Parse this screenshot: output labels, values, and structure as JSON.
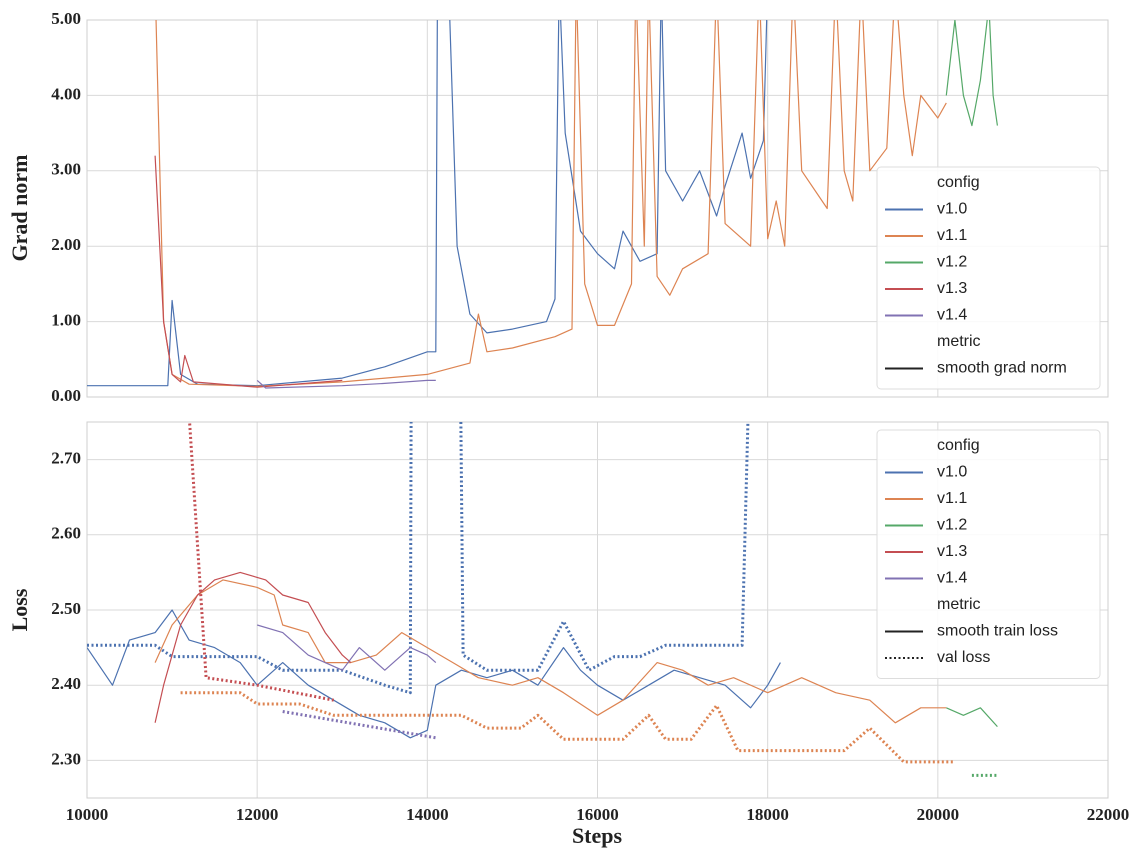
{
  "chart_data": [
    {
      "type": "line",
      "ylabel": "Grad norm",
      "ylim": [
        0,
        5
      ],
      "yticks": [
        {
          "value": 0,
          "label": "0.00"
        },
        {
          "value": 1,
          "label": "1.00"
        },
        {
          "value": 2,
          "label": "2.00"
        },
        {
          "value": 3,
          "label": "3.00"
        },
        {
          "value": 4,
          "label": "4.00"
        },
        {
          "value": 5,
          "label": "5.00"
        }
      ],
      "grid": true,
      "legend": {
        "title": "config",
        "metric_title": "metric",
        "corner": "lower right"
      },
      "configs": [
        {
          "name": "v1.0",
          "color": "#4c72b0"
        },
        {
          "name": "v1.1",
          "color": "#dd8452"
        },
        {
          "name": "v1.2",
          "color": "#55a868"
        },
        {
          "name": "v1.3",
          "color": "#c44e52"
        },
        {
          "name": "v1.4",
          "color": "#8172b3"
        }
      ],
      "metrics": [
        {
          "name": "smooth grad norm",
          "dash": "solid"
        }
      ],
      "series": [
        {
          "config": 0,
          "metric": 0,
          "x": [
            10000,
            10950,
            11000,
            11100,
            11300,
            12000,
            12500,
            13000,
            13500,
            14000,
            14100,
            14120,
            14250,
            14350,
            14500,
            14700,
            15000,
            15400,
            15500,
            15550,
            15620,
            15800,
            16000,
            16200,
            16300,
            16500,
            16700,
            16750,
            16800,
            17000,
            17200,
            17400,
            17500,
            17700,
            17800,
            17950,
            18000
          ],
          "values": [
            0.15,
            0.15,
            1.28,
            0.3,
            0.17,
            0.15,
            0.2,
            0.25,
            0.4,
            0.6,
            0.6,
            5.5,
            5.5,
            2.0,
            1.1,
            0.85,
            0.9,
            1.0,
            1.3,
            5.5,
            3.5,
            2.2,
            1.9,
            1.7,
            2.2,
            1.8,
            1.9,
            5.5,
            3.0,
            2.6,
            3.0,
            2.4,
            2.8,
            3.5,
            2.9,
            3.4,
            5.5
          ]
        },
        {
          "config": 1,
          "metric": 0,
          "x": [
            10800,
            10900,
            11000,
            11200,
            12000,
            13000,
            14000,
            14500,
            14600,
            14700,
            15000,
            15500,
            15700,
            15750,
            15850,
            16000,
            16200,
            16400,
            16450,
            16550,
            16600,
            16700,
            16850,
            17000,
            17300,
            17400,
            17500,
            17800,
            17900,
            18000,
            18100,
            18200,
            18300,
            18400,
            18700,
            18800,
            18900,
            19000,
            19100,
            19200,
            19400,
            19500,
            19600,
            19700,
            19800,
            20000,
            20100
          ],
          "values": [
            5.5,
            1.0,
            0.3,
            0.17,
            0.14,
            0.2,
            0.3,
            0.45,
            1.1,
            0.6,
            0.65,
            0.8,
            0.9,
            5.5,
            1.5,
            0.95,
            0.95,
            1.5,
            5.5,
            2.0,
            5.5,
            1.6,
            1.35,
            1.7,
            1.9,
            5.5,
            2.3,
            2.0,
            5.5,
            2.1,
            2.6,
            2.0,
            5.5,
            3.0,
            2.5,
            5.5,
            3.0,
            2.6,
            5.5,
            3.0,
            3.3,
            5.5,
            4.0,
            3.2,
            4.0,
            3.7,
            3.9
          ]
        },
        {
          "config": 2,
          "metric": 0,
          "x": [
            20100,
            20200,
            20300,
            20400,
            20500,
            20600,
            20650,
            20700
          ],
          "values": [
            4.0,
            5.0,
            4.0,
            3.6,
            4.2,
            5.2,
            4.0,
            3.6
          ]
        },
        {
          "config": 3,
          "metric": 0,
          "x": [
            10800,
            10900,
            11000,
            11100,
            11150,
            11250,
            12000,
            13000
          ],
          "values": [
            3.2,
            1.0,
            0.3,
            0.2,
            0.55,
            0.2,
            0.13,
            0.22
          ]
        },
        {
          "config": 4,
          "metric": 0,
          "x": [
            12000,
            12100,
            13000,
            13500,
            14000,
            14100
          ],
          "values": [
            0.22,
            0.12,
            0.15,
            0.18,
            0.22,
            0.22
          ]
        }
      ]
    },
    {
      "type": "line",
      "ylabel": "Loss",
      "xlabel": "Steps",
      "xlim": [
        10000,
        22000
      ],
      "xticks": [
        10000,
        12000,
        14000,
        16000,
        18000,
        20000,
        22000
      ],
      "ylim": [
        2.25,
        2.75
      ],
      "yticks": [
        {
          "value": 2.3,
          "label": "2.30"
        },
        {
          "value": 2.4,
          "label": "2.40"
        },
        {
          "value": 2.5,
          "label": "2.50"
        },
        {
          "value": 2.6,
          "label": "2.60"
        },
        {
          "value": 2.7,
          "label": "2.70"
        }
      ],
      "grid": true,
      "legend": {
        "title": "config",
        "metric_title": "metric",
        "corner": "upper right"
      },
      "configs": [
        {
          "name": "v1.0",
          "color": "#4c72b0"
        },
        {
          "name": "v1.1",
          "color": "#dd8452"
        },
        {
          "name": "v1.2",
          "color": "#55a868"
        },
        {
          "name": "v1.3",
          "color": "#c44e52"
        },
        {
          "name": "v1.4",
          "color": "#8172b3"
        }
      ],
      "metrics": [
        {
          "name": "smooth train loss",
          "dash": "solid"
        },
        {
          "name": "val loss",
          "dash": "dotted"
        }
      ],
      "series": [
        {
          "config": 0,
          "metric": 0,
          "x": [
            10000,
            10300,
            10500,
            10800,
            11000,
            11200,
            11500,
            11800,
            12000,
            12300,
            12600,
            12900,
            13200,
            13500,
            13800,
            14000,
            14100,
            14400,
            14700,
            15000,
            15300,
            15600,
            15800,
            16000,
            16300,
            16600,
            16900,
            17200,
            17500,
            17800,
            18000,
            18150
          ],
          "values": [
            2.45,
            2.4,
            2.46,
            2.47,
            2.5,
            2.46,
            2.45,
            2.43,
            2.4,
            2.43,
            2.4,
            2.38,
            2.36,
            2.35,
            2.33,
            2.34,
            2.4,
            2.42,
            2.41,
            2.42,
            2.4,
            2.45,
            2.42,
            2.4,
            2.38,
            2.4,
            2.42,
            2.41,
            2.4,
            2.37,
            2.4,
            2.43
          ]
        },
        {
          "config": 0,
          "metric": 1,
          "x": [
            10000,
            10800,
            11000,
            12000,
            12300,
            13000,
            13500,
            13800,
            13810,
            14390,
            14420,
            14700,
            15300,
            15600,
            15900,
            16200,
            16500,
            16800,
            17700,
            17780
          ],
          "values": [
            2.453,
            2.453,
            2.438,
            2.438,
            2.42,
            2.42,
            2.4,
            2.39,
            2.8,
            2.8,
            2.44,
            2.42,
            2.42,
            2.485,
            2.42,
            2.438,
            2.438,
            2.453,
            2.453,
            2.8
          ]
        },
        {
          "config": 1,
          "metric": 0,
          "x": [
            10800,
            11000,
            11300,
            11600,
            12000,
            12200,
            12300,
            12600,
            12800,
            13100,
            13400,
            13700,
            14000,
            14300,
            14600,
            15000,
            15300,
            15600,
            16000,
            16300,
            16700,
            17000,
            17300,
            17600,
            18000,
            18400,
            18800,
            19200,
            19500,
            19800,
            20100
          ],
          "values": [
            2.43,
            2.48,
            2.52,
            2.54,
            2.53,
            2.52,
            2.48,
            2.47,
            2.43,
            2.43,
            2.44,
            2.47,
            2.45,
            2.43,
            2.41,
            2.4,
            2.41,
            2.39,
            2.36,
            2.38,
            2.43,
            2.42,
            2.4,
            2.41,
            2.39,
            2.41,
            2.39,
            2.38,
            2.35,
            2.37,
            2.37
          ]
        },
        {
          "config": 1,
          "metric": 1,
          "x": [
            11100,
            11800,
            12000,
            12500,
            12900,
            14400,
            14700,
            15100,
            15300,
            15600,
            16300,
            16600,
            16800,
            17100,
            17400,
            17650,
            18900,
            19200,
            19600,
            20200
          ],
          "values": [
            2.39,
            2.39,
            2.375,
            2.375,
            2.36,
            2.36,
            2.343,
            2.343,
            2.36,
            2.328,
            2.328,
            2.36,
            2.328,
            2.328,
            2.373,
            2.313,
            2.313,
            2.343,
            2.298,
            2.298
          ]
        },
        {
          "config": 2,
          "metric": 0,
          "x": [
            20100,
            20300,
            20500,
            20700
          ],
          "values": [
            2.37,
            2.36,
            2.37,
            2.345
          ]
        },
        {
          "config": 2,
          "metric": 1,
          "x": [
            20400,
            20700
          ],
          "values": [
            2.28,
            2.28
          ]
        },
        {
          "config": 3,
          "metric": 0,
          "x": [
            10800,
            10900,
            11100,
            11300,
            11500,
            11800,
            12100,
            12300,
            12600,
            12800,
            13000,
            13100
          ],
          "values": [
            2.35,
            2.4,
            2.48,
            2.52,
            2.54,
            2.55,
            2.54,
            2.52,
            2.51,
            2.47,
            2.44,
            2.43
          ]
        },
        {
          "config": 3,
          "metric": 1,
          "x": [
            11200,
            11400,
            12000,
            12900
          ],
          "values": [
            2.76,
            2.41,
            2.4,
            2.38
          ]
        },
        {
          "config": 4,
          "metric": 0,
          "x": [
            12000,
            12300,
            12600,
            13000,
            13200,
            13500,
            13800,
            14000,
            14100
          ],
          "values": [
            2.48,
            2.47,
            2.44,
            2.42,
            2.45,
            2.42,
            2.45,
            2.44,
            2.43
          ]
        },
        {
          "config": 4,
          "metric": 1,
          "x": [
            12300,
            14100
          ],
          "values": [
            2.365,
            2.33
          ]
        }
      ]
    }
  ]
}
